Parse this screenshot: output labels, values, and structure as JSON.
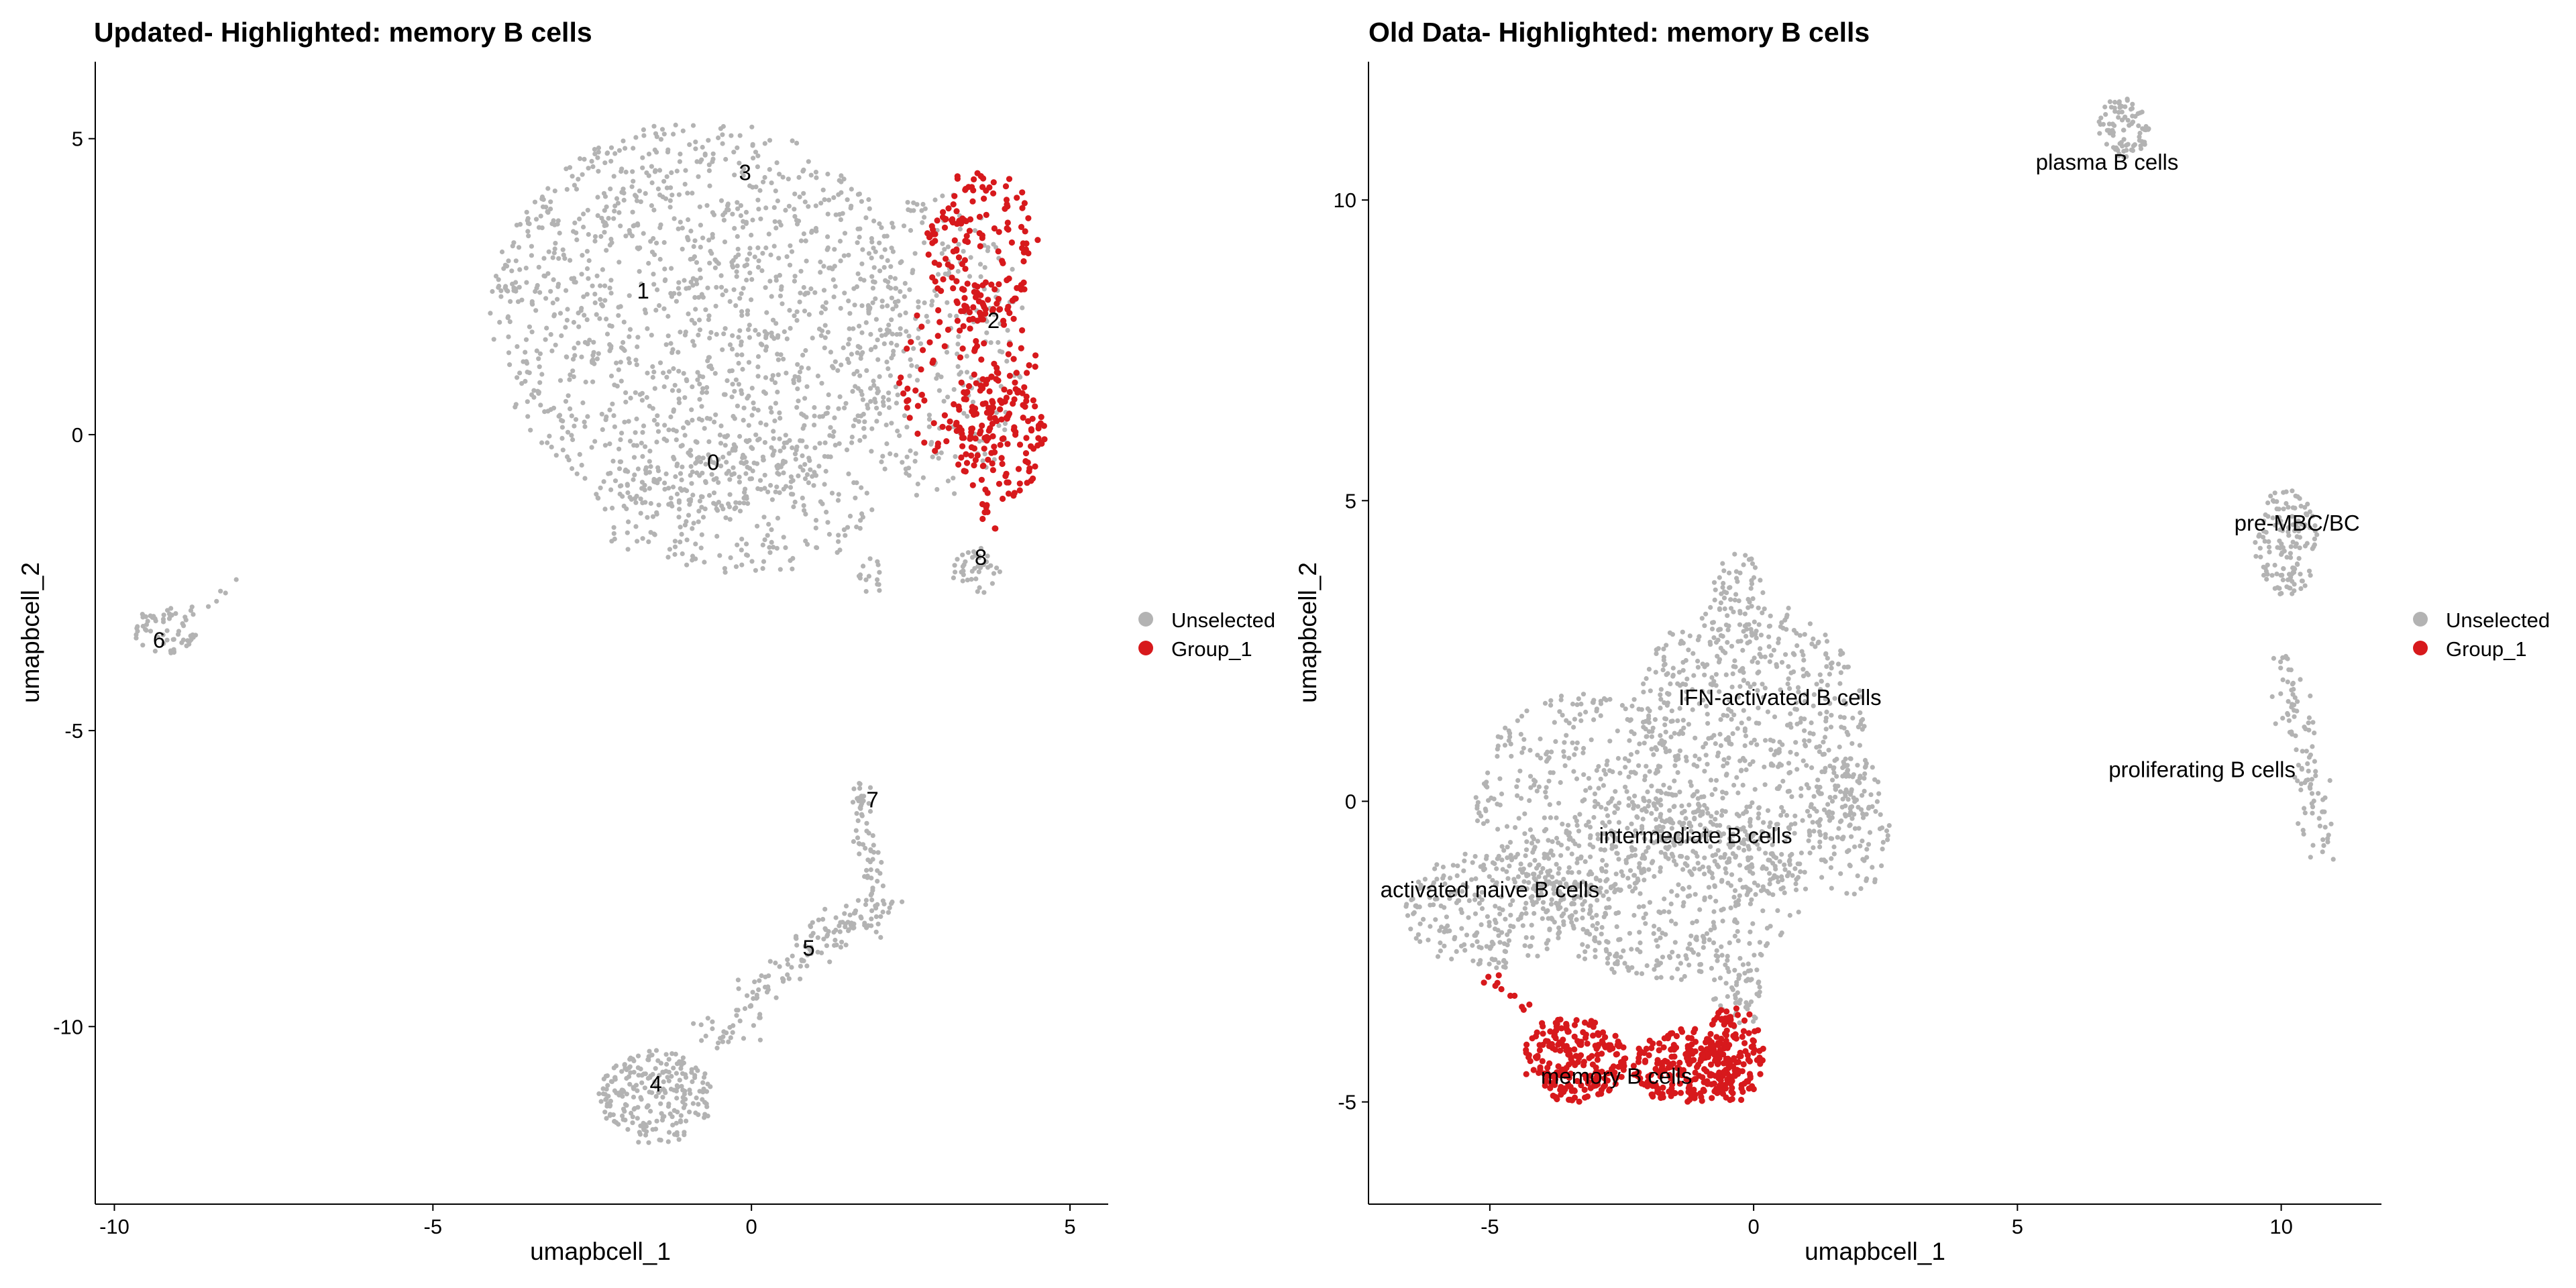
{
  "chart_data": [
    {
      "type": "scatter",
      "title": "Updated- Highlighted: memory B cells",
      "xlabel": "umapbcell_1",
      "ylabel": "umapbcell_2",
      "xlim": [
        -10.3,
        5.6
      ],
      "ylim": [
        -13.0,
        6.3
      ],
      "xticks": [
        -10,
        -5,
        0,
        5
      ],
      "yticks": [
        5,
        0,
        -5,
        -10
      ],
      "xtick_labels": [
        "-10",
        "-5",
        "0",
        "5"
      ],
      "ytick_labels": [
        "5",
        "0",
        "-5",
        "-10"
      ],
      "grid": false,
      "legend_placement": "right",
      "series": [
        {
          "name": "Unselected",
          "color": "#b3b3b3",
          "approx_points": 2600
        },
        {
          "name": "Group_1",
          "color": "#d7191c",
          "approx_points": 420
        }
      ],
      "clusters": [
        {
          "label": "0",
          "x": -0.6,
          "y": -0.5
        },
        {
          "label": "1",
          "x": -1.7,
          "y": 2.4
        },
        {
          "label": "2",
          "x": 3.8,
          "y": 1.9
        },
        {
          "label": "3",
          "x": -0.1,
          "y": 4.4
        },
        {
          "label": "4",
          "x": -1.5,
          "y": -11.0
        },
        {
          "label": "5",
          "x": 0.9,
          "y": -8.7
        },
        {
          "label": "6",
          "x": -9.3,
          "y": -3.5
        },
        {
          "label": "7",
          "x": 1.9,
          "y": -6.2
        },
        {
          "label": "8",
          "x": 3.6,
          "y": -2.1
        }
      ]
    },
    {
      "type": "scatter",
      "title": "Old Data- Highlighted: memory B cells",
      "xlabel": "umapbcell_1",
      "ylabel": "umapbcell_2",
      "xlim": [
        -7.3,
        11.9
      ],
      "ylim": [
        -6.7,
        12.3
      ],
      "xticks": [
        -5,
        0,
        5,
        10
      ],
      "yticks": [
        10,
        5,
        0,
        -5
      ],
      "xtick_labels": [
        "-5",
        "0",
        "5",
        "10"
      ],
      "ytick_labels": [
        "10",
        "5",
        "0",
        "-5"
      ],
      "grid": false,
      "legend_placement": "right",
      "series": [
        {
          "name": "Unselected",
          "color": "#b3b3b3",
          "approx_points": 2700
        },
        {
          "name": "Group_1",
          "color": "#d7191c",
          "approx_points": 560
        }
      ],
      "clusters": [
        {
          "label": "plasma B cells",
          "x": 6.7,
          "y": 10.6
        },
        {
          "label": "pre-MBC/BC",
          "x": 10.3,
          "y": 4.6
        },
        {
          "label": "IFN-activated B cells",
          "x": 0.5,
          "y": 1.7
        },
        {
          "label": "proliferating B cells",
          "x": 8.5,
          "y": 0.5
        },
        {
          "label": "intermediate B cells",
          "x": -1.1,
          "y": -0.6
        },
        {
          "label": "activated naive B cells",
          "x": -5.0,
          "y": -1.5
        },
        {
          "label": "memory B cells",
          "x": -2.6,
          "y": -4.6
        }
      ]
    }
  ]
}
